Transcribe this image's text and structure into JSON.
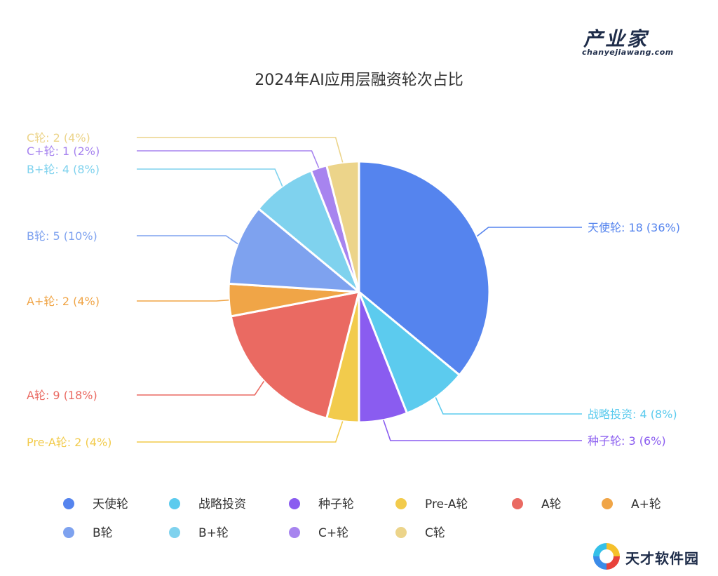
{
  "brand": {
    "name": "产业家",
    "url_text": "chanyejiawang.com"
  },
  "watermark": {
    "text": "天才软件园"
  },
  "chart_data": {
    "type": "pie",
    "title": "2024年AI应用层融资轮次占比",
    "slices": [
      {
        "name": "天使轮",
        "value": 18,
        "percent": "36%",
        "color": "#5584ee",
        "label": "天使轮: 18 (36%)"
      },
      {
        "name": "战略投资",
        "value": 4,
        "percent": "8%",
        "color": "#5ccbee",
        "label": "战略投资: 4 (8%)"
      },
      {
        "name": "种子轮",
        "value": 3,
        "percent": "6%",
        "color": "#8a5cf0",
        "label": "种子轮: 3 (6%)"
      },
      {
        "name": "Pre-A轮",
        "value": 2,
        "percent": "4%",
        "color": "#f2cb4c",
        "label": "Pre-A轮: 2 (4%)"
      },
      {
        "name": "A轮",
        "value": 9,
        "percent": "18%",
        "color": "#ea6a62",
        "label": "A轮: 9 (18%)"
      },
      {
        "name": "A+轮",
        "value": 2,
        "percent": "4%",
        "color": "#f0a547",
        "label": "A+轮: 2 (4%)"
      },
      {
        "name": "B轮",
        "value": 5,
        "percent": "10%",
        "color": "#7ea2ef",
        "label": "B轮: 5 (10%)"
      },
      {
        "name": "B+轮",
        "value": 4,
        "percent": "8%",
        "color": "#7fd2ee",
        "label": "B+轮: 4 (8%)"
      },
      {
        "name": "C+轮",
        "value": 1,
        "percent": "2%",
        "color": "#a784ef",
        "label": "C+轮: 1 (2%)"
      },
      {
        "name": "C轮",
        "value": 2,
        "percent": "4%",
        "color": "#ecd48a",
        "label": "C轮: 2 (4%)"
      }
    ],
    "legend_position": "bottom",
    "start_angle": "12 o'clock",
    "direction": "clockwise"
  }
}
